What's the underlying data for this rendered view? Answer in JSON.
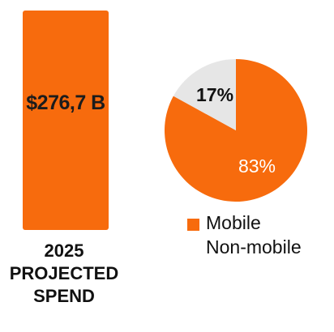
{
  "colors": {
    "mobile": "#F76B0D",
    "non_mobile": "#E6E6E6",
    "text_dark": "#111111",
    "text_light": "#ffffff"
  },
  "chart_data": [
    {
      "type": "bar",
      "categories": [
        "2025 PROJECTED SPEND"
      ],
      "values": [
        276.7
      ],
      "value_label": "$276,7 B",
      "caption_lines": [
        "2025",
        "PROJECTED",
        "SPEND"
      ]
    },
    {
      "type": "pie",
      "slices": [
        {
          "name": "Mobile",
          "value": 83,
          "label": "83%"
        },
        {
          "name": "Non-mobile",
          "value": 17,
          "label": "17%"
        }
      ],
      "legend": [
        "Mobile",
        "Non-mobile"
      ],
      "legend_placement": "bottom"
    }
  ]
}
